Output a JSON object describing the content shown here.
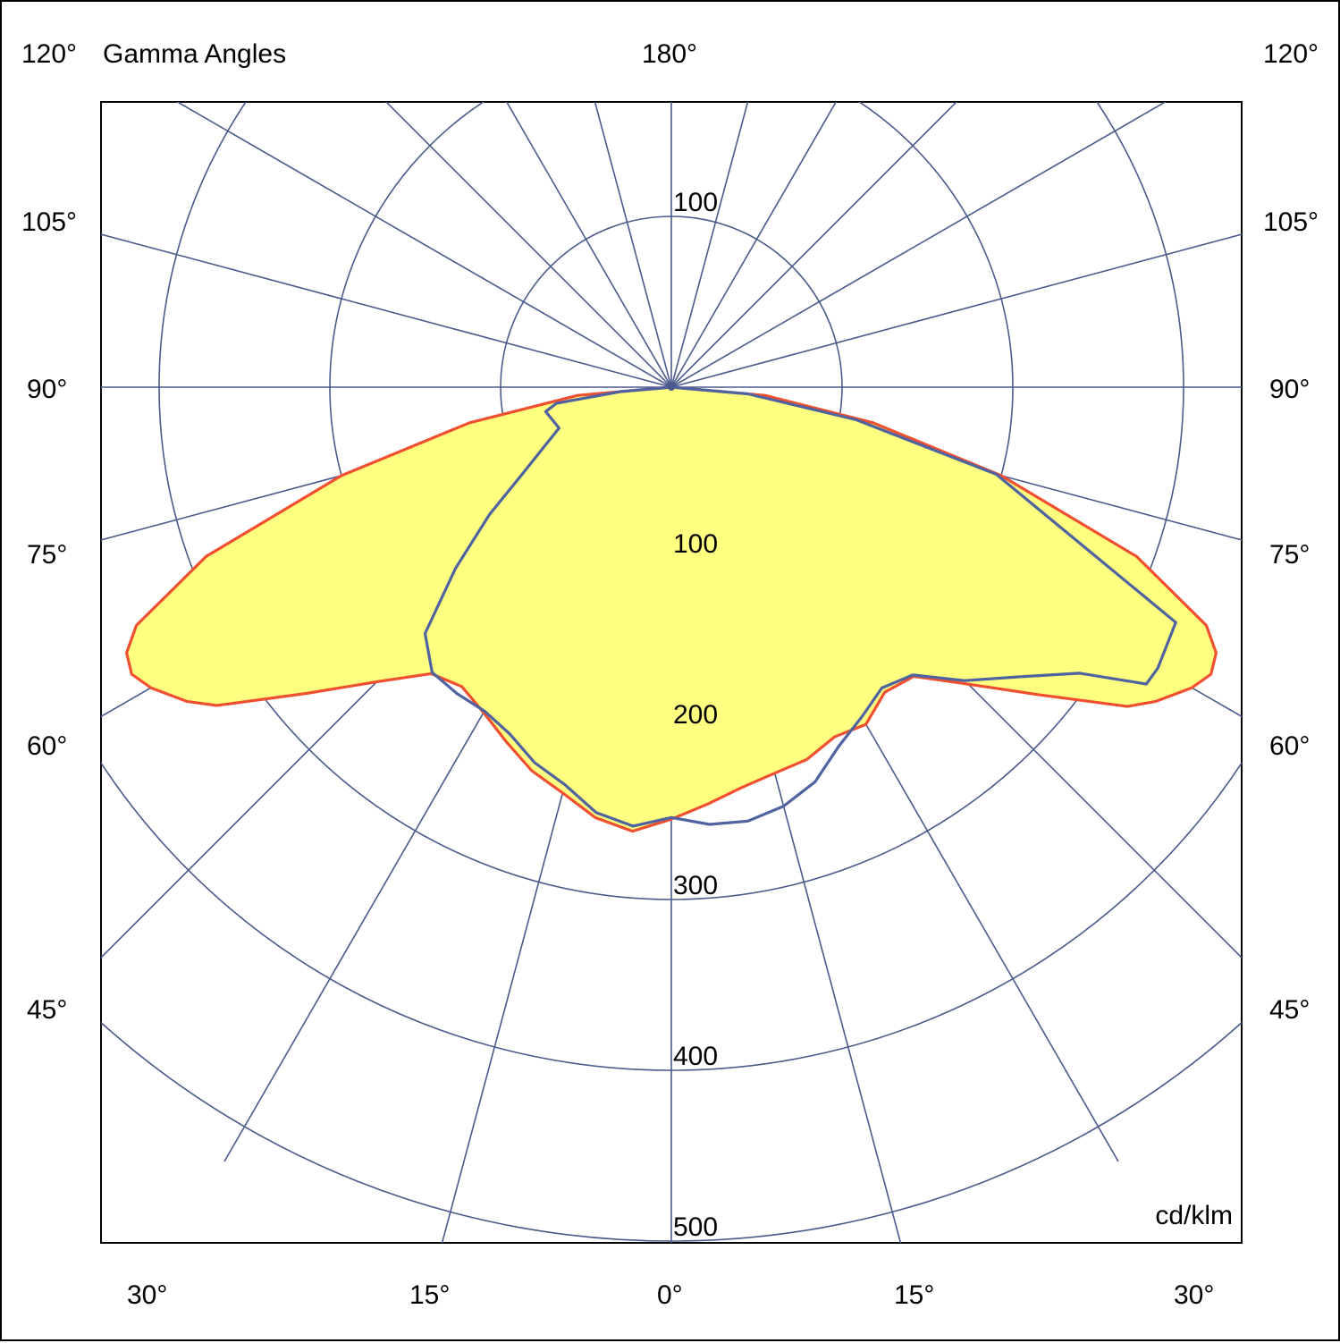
{
  "chart_data": {
    "type": "polar",
    "title": "Gamma Angles",
    "unit": "cd/klm",
    "radial_max": 500,
    "radial_rings": [
      100,
      200,
      300,
      400,
      500
    ],
    "upper_ring_labels": [
      "100"
    ],
    "lower_ring_labels": [
      "100",
      "200",
      "300",
      "400",
      "500"
    ],
    "spoke_step_deg": 15,
    "left_angle_labels": [
      "120°",
      "105°",
      "90°",
      "75°",
      "60°",
      "45°"
    ],
    "right_angle_labels": [
      "120°",
      "105°",
      "90°",
      "75°",
      "60°",
      "45°"
    ],
    "top_angle_label": "180°",
    "bottom_angle_labels": [
      "30°",
      "15°",
      "0°",
      "15°",
      "30°"
    ],
    "series": [
      {
        "plane": "C0-C180",
        "color": "#f05030",
        "fill": "#ffff80",
        "points": [
          {
            "a": -90,
            "r": 0
          },
          {
            "a": -85,
            "r": 55
          },
          {
            "a": -80,
            "r": 120
          },
          {
            "a": -75,
            "r": 200
          },
          {
            "a": -70,
            "r": 290
          },
          {
            "a": -66,
            "r": 343
          },
          {
            "a": -64,
            "r": 355
          },
          {
            "a": -62,
            "r": 358
          },
          {
            "a": -60,
            "r": 352
          },
          {
            "a": -57,
            "r": 338
          },
          {
            "a": -55,
            "r": 325
          },
          {
            "a": -50,
            "r": 279
          },
          {
            "a": -45,
            "r": 244
          },
          {
            "a": -40,
            "r": 219
          },
          {
            "a": -35,
            "r": 214
          },
          {
            "a": -30,
            "r": 220
          },
          {
            "a": -25,
            "r": 229
          },
          {
            "a": -20,
            "r": 239
          },
          {
            "a": -15,
            "r": 246
          },
          {
            "a": -10,
            "r": 256
          },
          {
            "a": -5,
            "r": 261
          },
          {
            "a": 0,
            "r": 253
          },
          {
            "a": 5,
            "r": 245
          },
          {
            "a": 10,
            "r": 238
          },
          {
            "a": 15,
            "r": 234
          },
          {
            "a": 20,
            "r": 232
          },
          {
            "a": 25,
            "r": 226
          },
          {
            "a": 30,
            "r": 228
          },
          {
            "a": 35,
            "r": 218
          },
          {
            "a": 40,
            "r": 221
          },
          {
            "a": 45,
            "r": 246
          },
          {
            "a": 50,
            "r": 280
          },
          {
            "a": 55,
            "r": 326
          },
          {
            "a": 57,
            "r": 338
          },
          {
            "a": 60,
            "r": 352
          },
          {
            "a": 62,
            "r": 358
          },
          {
            "a": 64,
            "r": 355
          },
          {
            "a": 66,
            "r": 343
          },
          {
            "a": 70,
            "r": 290
          },
          {
            "a": 75,
            "r": 200
          },
          {
            "a": 80,
            "r": 120
          },
          {
            "a": 85,
            "r": 55
          },
          {
            "a": 90,
            "r": 0
          }
        ]
      },
      {
        "plane": "C90-C270",
        "color": "#4f63a0",
        "points": [
          {
            "a": -90,
            "r": 0
          },
          {
            "a": -85,
            "r": 30
          },
          {
            "a": -82,
            "r": 68
          },
          {
            "a": -79,
            "r": 75
          },
          {
            "a": -70,
            "r": 70
          },
          {
            "a": -60,
            "r": 100
          },
          {
            "a": -55,
            "r": 130
          },
          {
            "a": -50,
            "r": 165
          },
          {
            "a": -45,
            "r": 204
          },
          {
            "a": -40,
            "r": 218
          },
          {
            "a": -35,
            "r": 219
          },
          {
            "a": -30,
            "r": 219
          },
          {
            "a": -25,
            "r": 224
          },
          {
            "a": -20,
            "r": 234
          },
          {
            "a": -15,
            "r": 241
          },
          {
            "a": -10,
            "r": 253
          },
          {
            "a": -5,
            "r": 258
          },
          {
            "a": 0,
            "r": 252
          },
          {
            "a": 5,
            "r": 257
          },
          {
            "a": 10,
            "r": 258
          },
          {
            "a": 15,
            "r": 254
          },
          {
            "a": 20,
            "r": 246
          },
          {
            "a": 25,
            "r": 232
          },
          {
            "a": 30,
            "r": 223
          },
          {
            "a": 35,
            "r": 215
          },
          {
            "a": 40,
            "r": 220
          },
          {
            "a": 45,
            "r": 243
          },
          {
            "a": 50,
            "r": 264
          },
          {
            "a": 55,
            "r": 292
          },
          {
            "a": 57,
            "r": 315
          },
          {
            "a": 58,
            "r": 328
          },
          {
            "a": 60,
            "r": 329
          },
          {
            "a": 65,
            "r": 326
          },
          {
            "a": 75,
            "r": 197
          },
          {
            "a": 80,
            "r": 110
          },
          {
            "a": 85,
            "r": 45
          },
          {
            "a": 90,
            "r": 0
          }
        ]
      }
    ]
  }
}
